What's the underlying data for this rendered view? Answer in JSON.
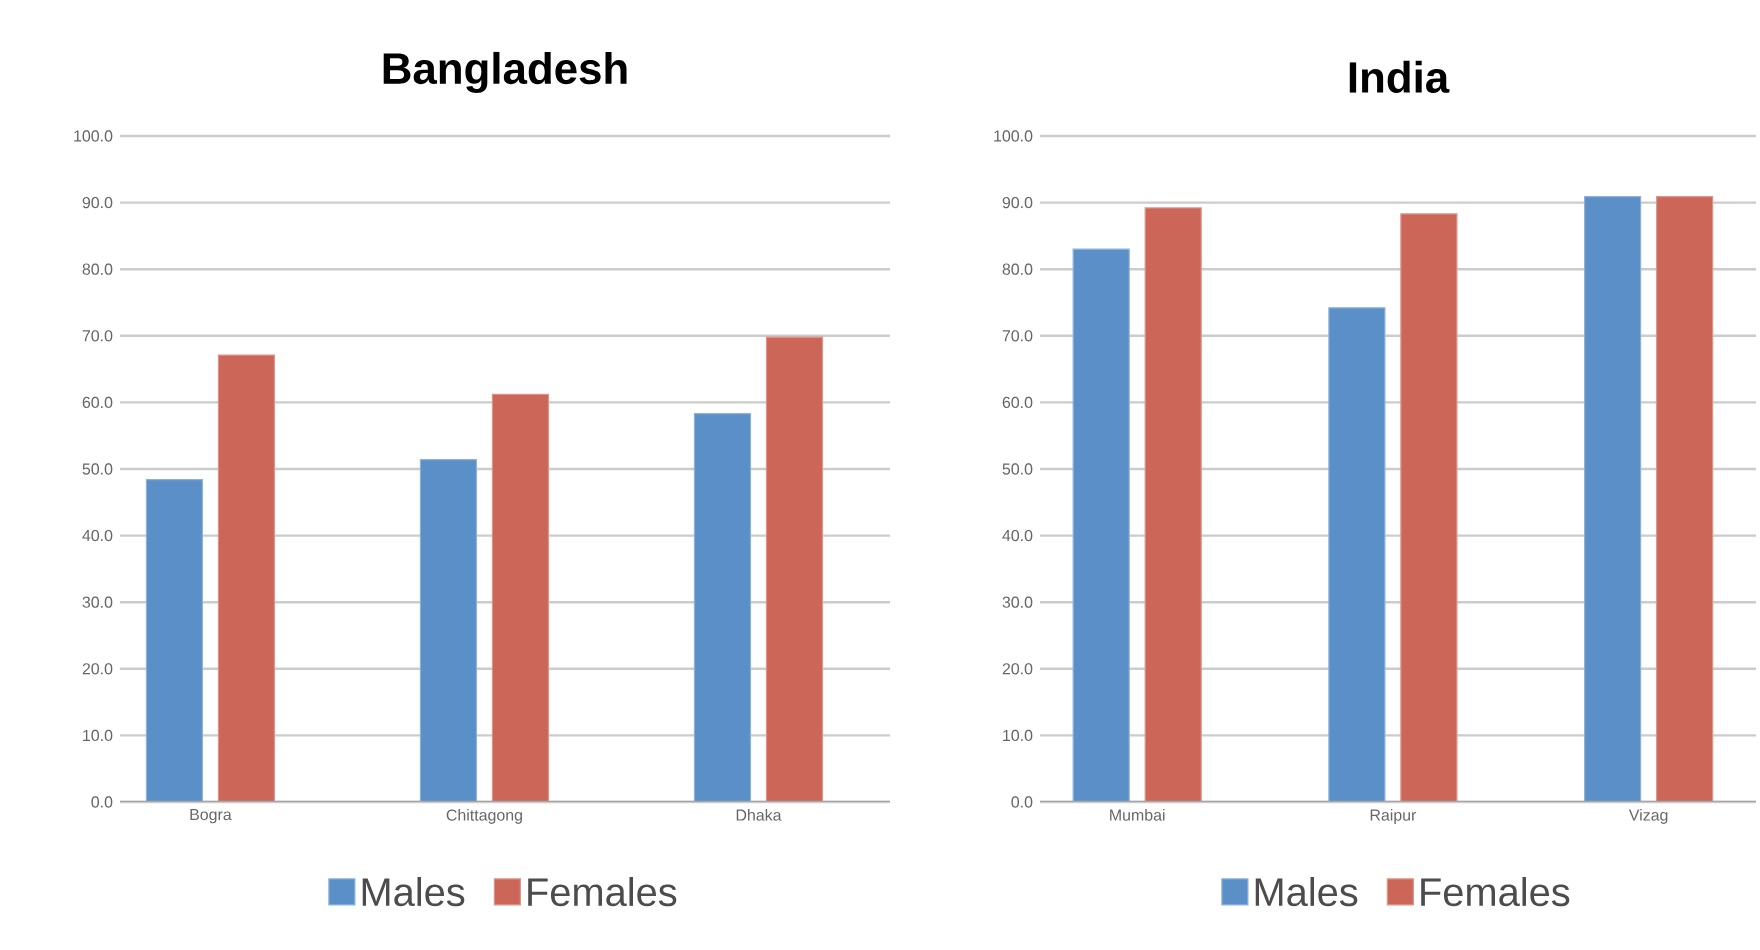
{
  "chart_data": [
    {
      "type": "bar",
      "title": "Bangladesh",
      "categories": [
        "Bogra",
        "Chittagong",
        "Dhaka"
      ],
      "series": [
        {
          "name": "Males",
          "color": "#5b8fc7",
          "values": [
            48.4,
            51.4,
            58.3
          ]
        },
        {
          "name": "Females",
          "color": "#cc6658",
          "values": [
            67.1,
            61.2,
            69.8
          ]
        }
      ],
      "ylim": [
        0,
        100
      ],
      "yticks": [
        {
          "value": 0,
          "label": "0.0"
        },
        {
          "value": 10,
          "label": "10.0"
        },
        {
          "value": 20,
          "label": "20.0"
        },
        {
          "value": 30,
          "label": "30.0"
        },
        {
          "value": 40,
          "label": "40.0"
        },
        {
          "value": 50,
          "label": "50.0"
        },
        {
          "value": 60,
          "label": "60.0"
        },
        {
          "value": 70,
          "label": "70.0"
        },
        {
          "value": 80,
          "label": "80.0"
        },
        {
          "value": 90,
          "label": "90.0"
        },
        {
          "value": 100,
          "label": "100.0"
        }
      ],
      "grid": "y",
      "legend": "bottom"
    },
    {
      "type": "bar",
      "title": "India",
      "categories": [
        "Mumbai",
        "Raipur",
        "Vizag"
      ],
      "series": [
        {
          "name": "Males",
          "color": "#5b8fc7",
          "values": [
            83.0,
            74.2,
            90.9
          ]
        },
        {
          "name": "Females",
          "color": "#cc6658",
          "values": [
            89.2,
            88.3,
            90.9
          ]
        }
      ],
      "ylim": [
        0,
        100
      ],
      "yticks": [
        {
          "value": 0,
          "label": "0.0"
        },
        {
          "value": 10,
          "label": "10.0"
        },
        {
          "value": 20,
          "label": "20.0"
        },
        {
          "value": 30,
          "label": "30.0"
        },
        {
          "value": 40,
          "label": "40.0"
        },
        {
          "value": 50,
          "label": "50.0"
        },
        {
          "value": 60,
          "label": "60.0"
        },
        {
          "value": 70,
          "label": "70.0"
        },
        {
          "value": 80,
          "label": "80.0"
        },
        {
          "value": 90,
          "label": "90.0"
        },
        {
          "value": 100,
          "label": "100.0"
        }
      ],
      "grid": "y",
      "legend": "bottom"
    }
  ]
}
